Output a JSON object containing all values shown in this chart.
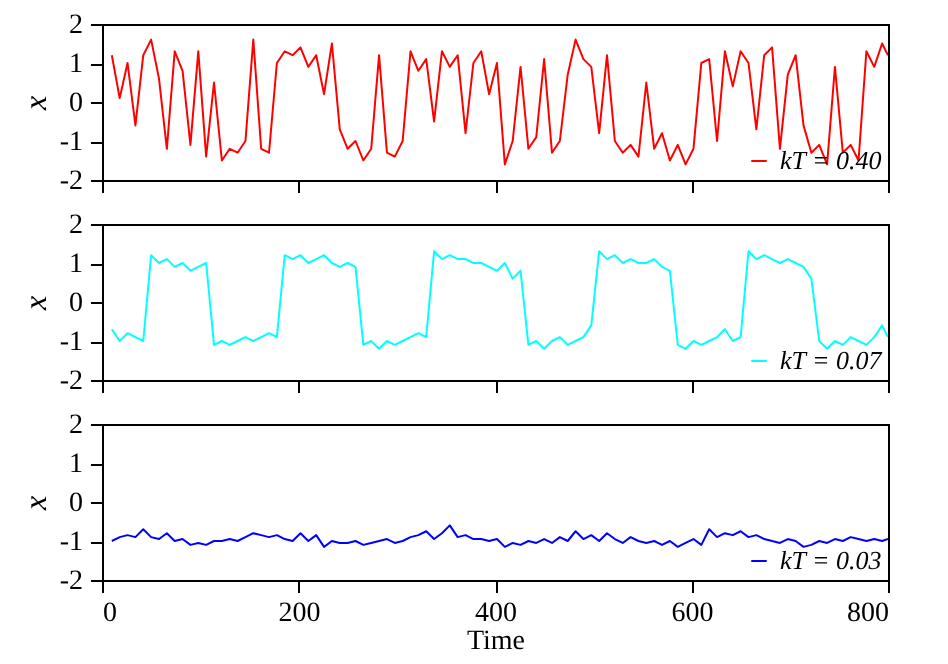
{
  "chart_data": [
    {
      "type": "line",
      "ylabel": "x",
      "xlim": [
        0,
        800
      ],
      "xticks": [
        0,
        200,
        400,
        600,
        800
      ],
      "ylim": [
        -2,
        2
      ],
      "yticks": [
        -2,
        -1,
        0,
        1,
        2
      ],
      "tick_labels": "y",
      "legend": "bottom right",
      "grid": false,
      "x": [
        10,
        18,
        26,
        34,
        42,
        50,
        58,
        66,
        74,
        82,
        90,
        98,
        106,
        114,
        122,
        130,
        138,
        146,
        154,
        162,
        170,
        178,
        186,
        194,
        202,
        210,
        218,
        226,
        234,
        242,
        250,
        258,
        266,
        274,
        282,
        290,
        298,
        306,
        314,
        322,
        330,
        338,
        346,
        354,
        362,
        370,
        378,
        386,
        394,
        402,
        410,
        418,
        426,
        434,
        442,
        450,
        458,
        466,
        474,
        482,
        490,
        498,
        506,
        514,
        522,
        530,
        538,
        546,
        554,
        562,
        570,
        578,
        586,
        594,
        602,
        610,
        618,
        626,
        634,
        642,
        650,
        658,
        666,
        674,
        682,
        690,
        698,
        706,
        714,
        722,
        730,
        738,
        746,
        754,
        762,
        770,
        778,
        786,
        794,
        800
      ],
      "series": [
        {
          "name": "kT = 0.40",
          "color": "#ff0000",
          "values": [
            1.2,
            0.1,
            1.0,
            -0.6,
            1.2,
            1.6,
            0.6,
            -1.2,
            1.3,
            0.8,
            -1.1,
            1.3,
            -1.4,
            0.5,
            -1.5,
            -1.2,
            -1.3,
            -1.0,
            1.6,
            -1.2,
            -1.3,
            1.0,
            1.3,
            1.2,
            1.4,
            0.9,
            1.2,
            0.2,
            1.5,
            -0.7,
            -1.2,
            -1.0,
            -1.5,
            -1.2,
            1.2,
            -1.3,
            -1.4,
            -1.0,
            1.3,
            0.8,
            1.1,
            -0.5,
            1.3,
            0.9,
            1.2,
            -0.8,
            1.0,
            1.3,
            0.2,
            1.0,
            -1.6,
            -1.0,
            0.9,
            -1.2,
            -0.9,
            1.1,
            -1.3,
            -1.0,
            0.7,
            1.6,
            1.1,
            0.9,
            -0.8,
            1.2,
            -1.0,
            -1.3,
            -1.1,
            -1.4,
            0.5,
            -1.2,
            -0.8,
            -1.5,
            -1.1,
            -1.6,
            -1.2,
            1.0,
            1.1,
            -1.0,
            1.3,
            0.4,
            1.3,
            1.0,
            -0.7,
            1.2,
            1.4,
            -1.2,
            0.7,
            1.2,
            -0.6,
            -1.3,
            -1.1,
            -1.6,
            0.9,
            -1.3,
            -1.1,
            -1.5,
            1.3,
            0.9,
            1.5,
            1.2
          ]
        }
      ]
    },
    {
      "type": "line",
      "ylabel": "x",
      "xlim": [
        0,
        800
      ],
      "xticks": [
        0,
        200,
        400,
        600,
        800
      ],
      "ylim": [
        -2,
        2
      ],
      "yticks": [
        -2,
        -1,
        0,
        1,
        2
      ],
      "tick_labels": "y",
      "legend": "bottom right",
      "grid": false,
      "x": [
        10,
        18,
        26,
        34,
        42,
        50,
        58,
        66,
        74,
        82,
        90,
        98,
        106,
        114,
        122,
        130,
        138,
        146,
        154,
        162,
        170,
        178,
        186,
        194,
        202,
        210,
        218,
        226,
        234,
        242,
        250,
        258,
        266,
        274,
        282,
        290,
        298,
        306,
        314,
        322,
        330,
        338,
        346,
        354,
        362,
        370,
        378,
        386,
        394,
        402,
        410,
        418,
        426,
        434,
        442,
        450,
        458,
        466,
        474,
        482,
        490,
        498,
        506,
        514,
        522,
        530,
        538,
        546,
        554,
        562,
        570,
        578,
        586,
        594,
        602,
        610,
        618,
        626,
        634,
        642,
        650,
        658,
        666,
        674,
        682,
        690,
        698,
        706,
        714,
        722,
        730,
        738,
        746,
        754,
        762,
        770,
        778,
        786,
        794,
        800
      ],
      "series": [
        {
          "name": "kT = 0.07",
          "color": "#00ffff",
          "values": [
            -0.7,
            -1.0,
            -0.8,
            -0.9,
            -1.0,
            1.2,
            1.0,
            1.1,
            0.9,
            1.0,
            0.8,
            0.9,
            1.0,
            -1.1,
            -1.0,
            -1.1,
            -1.0,
            -0.9,
            -1.0,
            -0.9,
            -0.8,
            -0.9,
            1.2,
            1.1,
            1.2,
            1.0,
            1.1,
            1.2,
            1.0,
            0.9,
            1.0,
            0.9,
            -1.1,
            -1.0,
            -1.2,
            -1.0,
            -1.1,
            -1.0,
            -0.9,
            -0.8,
            -0.9,
            1.3,
            1.1,
            1.2,
            1.1,
            1.1,
            1.0,
            1.0,
            0.9,
            0.8,
            1.0,
            0.6,
            0.8,
            -1.1,
            -1.0,
            -1.2,
            -1.0,
            -0.9,
            -1.1,
            -1.0,
            -0.9,
            -0.6,
            1.3,
            1.1,
            1.2,
            1.0,
            1.1,
            1.0,
            1.0,
            1.1,
            0.9,
            0.8,
            -1.1,
            -1.2,
            -1.0,
            -1.1,
            -1.0,
            -0.9,
            -0.7,
            -1.0,
            -0.9,
            1.3,
            1.1,
            1.2,
            1.1,
            1.0,
            1.1,
            1.0,
            0.9,
            0.6,
            -1.0,
            -1.2,
            -1.0,
            -1.1,
            -0.9,
            -1.0,
            -1.1,
            -0.9,
            -0.6,
            -0.9
          ]
        }
      ]
    },
    {
      "type": "line",
      "ylabel": "x",
      "xlabel": "Time",
      "xlim": [
        0,
        800
      ],
      "xticks": [
        0,
        200,
        400,
        600,
        800
      ],
      "ylim": [
        -2,
        2
      ],
      "yticks": [
        -2,
        -1,
        0,
        1,
        2
      ],
      "legend": "bottom right",
      "grid": false,
      "x": [
        10,
        18,
        26,
        34,
        42,
        50,
        58,
        66,
        74,
        82,
        90,
        98,
        106,
        114,
        122,
        130,
        138,
        146,
        154,
        162,
        170,
        178,
        186,
        194,
        202,
        210,
        218,
        226,
        234,
        242,
        250,
        258,
        266,
        274,
        282,
        290,
        298,
        306,
        314,
        322,
        330,
        338,
        346,
        354,
        362,
        370,
        378,
        386,
        394,
        402,
        410,
        418,
        426,
        434,
        442,
        450,
        458,
        466,
        474,
        482,
        490,
        498,
        506,
        514,
        522,
        530,
        538,
        546,
        554,
        562,
        570,
        578,
        586,
        594,
        602,
        610,
        618,
        626,
        634,
        642,
        650,
        658,
        666,
        674,
        682,
        690,
        698,
        706,
        714,
        722,
        730,
        738,
        746,
        754,
        762,
        770,
        778,
        786,
        794,
        800
      ],
      "series": [
        {
          "name": "kT = 0.03",
          "color": "#0000ff",
          "values": [
            -1.0,
            -0.9,
            -0.85,
            -0.9,
            -0.7,
            -0.9,
            -0.95,
            -0.8,
            -1.0,
            -0.95,
            -1.1,
            -1.05,
            -1.1,
            -1.0,
            -1.0,
            -0.95,
            -1.0,
            -0.9,
            -0.8,
            -0.85,
            -0.9,
            -0.85,
            -0.95,
            -1.0,
            -0.8,
            -1.0,
            -0.85,
            -1.15,
            -1.0,
            -1.05,
            -1.05,
            -1.0,
            -1.1,
            -1.05,
            -1.0,
            -0.95,
            -1.05,
            -1.0,
            -0.9,
            -0.85,
            -0.75,
            -0.95,
            -0.8,
            -0.6,
            -0.9,
            -0.85,
            -0.95,
            -0.95,
            -1.0,
            -0.95,
            -1.15,
            -1.05,
            -1.1,
            -1.0,
            -1.05,
            -0.95,
            -1.05,
            -0.9,
            -1.0,
            -0.75,
            -0.95,
            -0.85,
            -1.0,
            -0.8,
            -0.95,
            -1.05,
            -0.9,
            -1.0,
            -1.05,
            -1.0,
            -1.1,
            -1.0,
            -1.15,
            -1.05,
            -0.95,
            -1.1,
            -0.7,
            -0.9,
            -0.8,
            -0.85,
            -0.75,
            -0.9,
            -0.85,
            -0.95,
            -1.0,
            -1.05,
            -0.95,
            -1.0,
            -1.15,
            -1.1,
            -1.0,
            -1.05,
            -0.95,
            -1.0,
            -0.9,
            -0.95,
            -1.0,
            -0.95,
            -1.0,
            -0.95
          ]
        }
      ]
    }
  ]
}
